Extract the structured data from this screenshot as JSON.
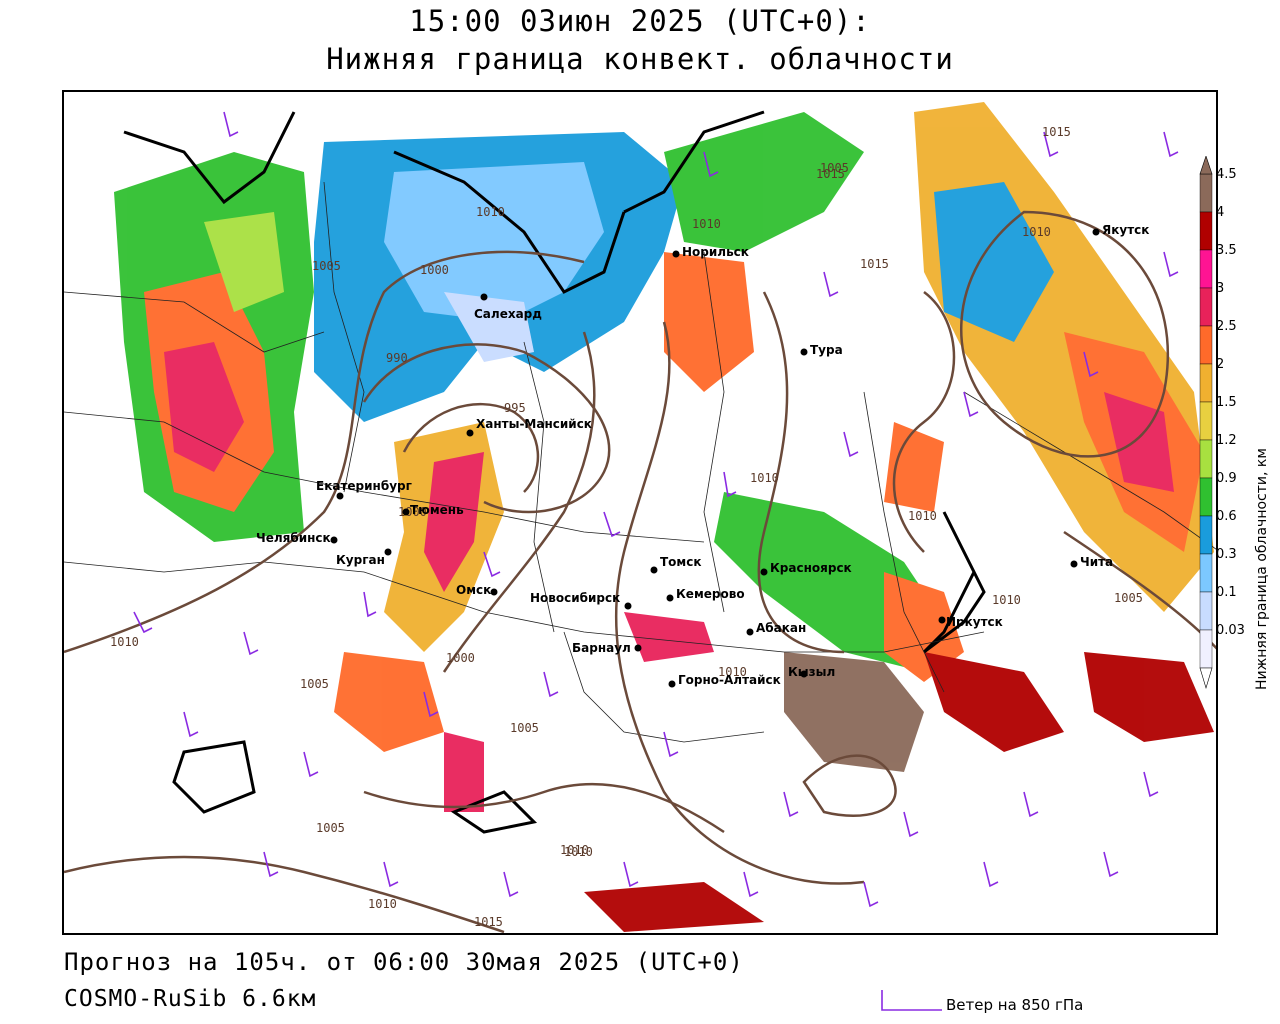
{
  "header": {
    "title_line1": "15:00 03июн 2025 (UTC+0):",
    "title_line2": "Нижняя граница конвект. облачности"
  },
  "footer": {
    "forecast": "Прогноз на 105ч. от 06:00 30мая 2025 (UTC+0)",
    "model": "COSMO-RuSib 6.6км",
    "wind_legend": "Ветер на 850 гПа"
  },
  "colorbar": {
    "title": "Нижняя граница облачности, км",
    "ticks": [
      "4.5",
      "4",
      "3.5",
      "3",
      "2.5",
      "2",
      "1.5",
      "1.2",
      "0.9",
      "0.6",
      "0.3",
      "0.1",
      "0.03"
    ],
    "colors": [
      "#8b6a5a",
      "#b00000",
      "#ff1493",
      "#e8225a",
      "#ff6a2a",
      "#f0b030",
      "#e8d040",
      "#a8e040",
      "#30c030",
      "#1a9cdc",
      "#7cc8ff",
      "#c8dcff",
      "#f0f0ff"
    ],
    "wind_color": "#8a2be2",
    "isobar_color": "#6b4a3a"
  },
  "cities": [
    {
      "name": "Якутск"
    },
    {
      "name": "Норильск"
    },
    {
      "name": "Салехард"
    },
    {
      "name": "Тура"
    },
    {
      "name": "Ханты-Мансийск"
    },
    {
      "name": "Екатеринбург"
    },
    {
      "name": "Тюмень"
    },
    {
      "name": "Челябинск"
    },
    {
      "name": "Курган"
    },
    {
      "name": "Омск"
    },
    {
      "name": "Томск"
    },
    {
      "name": "Красноярск"
    },
    {
      "name": "Новосибирск"
    },
    {
      "name": "Кемерово"
    },
    {
      "name": "Абакан"
    },
    {
      "name": "Барнаул"
    },
    {
      "name": "Горно-Алтайск"
    },
    {
      "name": "Кызыл"
    },
    {
      "name": "Иркутск"
    },
    {
      "name": "Чита"
    }
  ],
  "isobars": [
    {
      "value": "1015"
    },
    {
      "value": "1010"
    },
    {
      "value": "1005"
    },
    {
      "value": "1000"
    },
    {
      "value": "995"
    },
    {
      "value": "990"
    },
    {
      "value": "1010"
    },
    {
      "value": "1005"
    },
    {
      "value": "1000"
    },
    {
      "value": "1010"
    },
    {
      "value": "1015"
    },
    {
      "value": "1010"
    },
    {
      "value": "1005"
    },
    {
      "value": "1010"
    },
    {
      "value": "1015"
    },
    {
      "value": "1010"
    },
    {
      "value": "1010"
    },
    {
      "value": "1000"
    },
    {
      "value": "1010"
    },
    {
      "value": "1005"
    },
    {
      "value": "1010"
    },
    {
      "value": "1005"
    },
    {
      "value": "1010"
    },
    {
      "value": "1010"
    },
    {
      "value": "1015"
    },
    {
      "value": "1005"
    }
  ]
}
